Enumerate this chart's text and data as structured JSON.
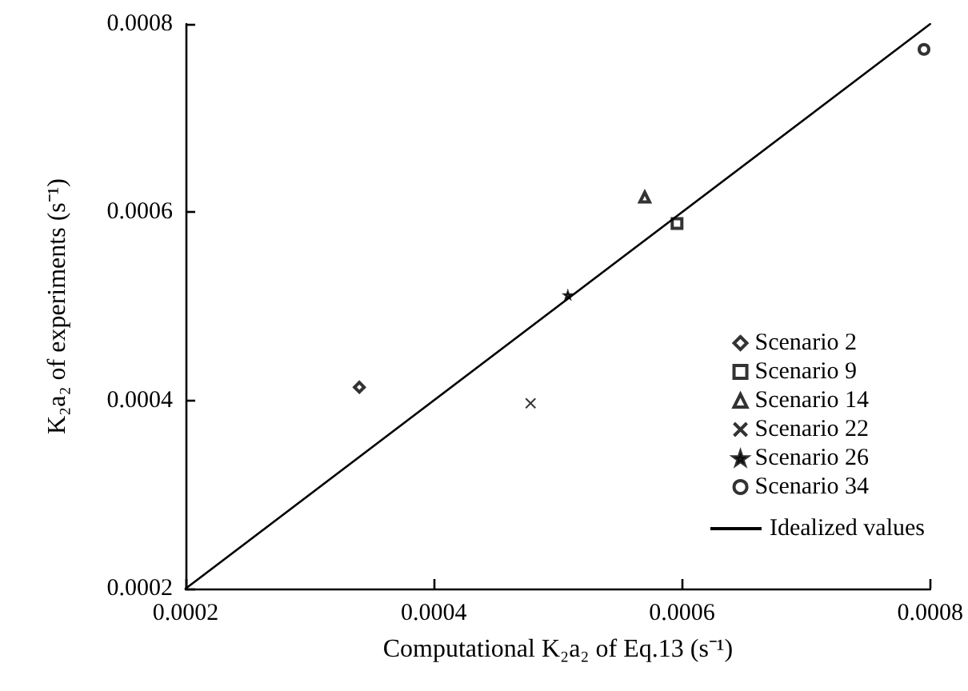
{
  "chart_data": {
    "type": "scatter",
    "xlabel": "Computational K₂a₂ of Eq.13 (s⁻¹)",
    "ylabel": "K₂a₂ of experiments (s⁻¹)",
    "xlim": [
      0.0002,
      0.0008
    ],
    "ylim": [
      0.0002,
      0.0008
    ],
    "xticks": [
      0.0002,
      0.0004,
      0.0006,
      0.0008
    ],
    "yticks": [
      0.0002,
      0.0004,
      0.0006,
      0.0008
    ],
    "grid": false,
    "legend": "right",
    "series": [
      {
        "name": "Scenario 2",
        "color": "#000000",
        "marker": "diamond",
        "x": [
          0.00034
        ],
        "values": [
          0.000414
        ]
      },
      {
        "name": "Scenario 9",
        "color": "#000000",
        "marker": "square",
        "x": [
          0.000596
        ],
        "values": [
          0.000588
        ]
      },
      {
        "name": "Scenario 14",
        "color": "#000000",
        "marker": "triangle",
        "x": [
          0.00057
        ],
        "values": [
          0.000616
        ]
      },
      {
        "name": "Scenario 22",
        "color": "#000000",
        "marker": "cross",
        "x": [
          0.000478
        ],
        "values": [
          0.000397
        ]
      },
      {
        "name": "Scenario 26",
        "color": "#000000",
        "marker": "star",
        "x": [
          0.000508
        ],
        "values": [
          0.000512
        ]
      },
      {
        "name": "Scenario 34",
        "color": "#000000",
        "marker": "circle",
        "x": [
          0.000795
        ],
        "values": [
          0.000773
        ]
      },
      {
        "name": "Idealized values",
        "type": "line",
        "color": "#000000",
        "marker": "none",
        "line_style": "solid",
        "x": [
          0.0002,
          0.0008
        ],
        "values": [
          0.0002,
          0.0008
        ]
      }
    ]
  }
}
